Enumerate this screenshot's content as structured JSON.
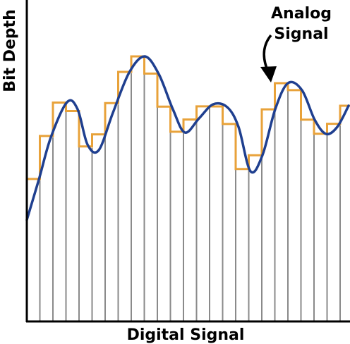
{
  "annotation": {
    "line1": "Analog",
    "line2": "Signal"
  },
  "xlabel": "Digital Signal",
  "ylabel": "Bit Depth",
  "colors": {
    "analog": "#1f3f8f",
    "digital": "#e8a23a",
    "sample_line": "#8a8a8a",
    "axis": "#000000"
  }
}
